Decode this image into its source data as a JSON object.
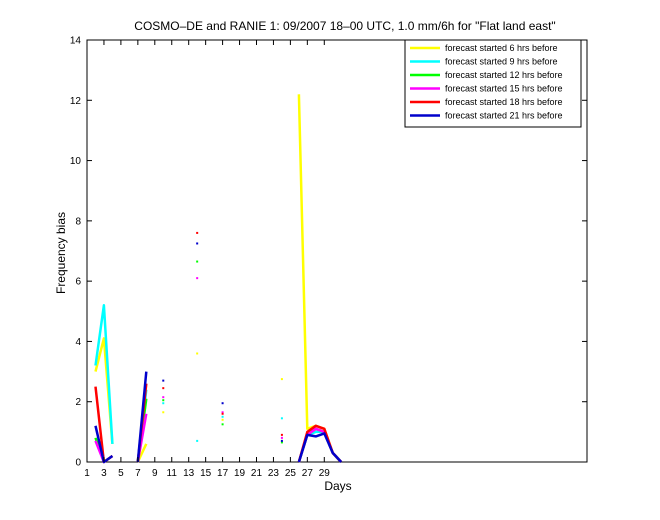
{
  "chart_data": {
    "type": "line",
    "title": "COSMO–DE and RANIE 1: 09/2007 18–00 UTC, 1.0 mm/6h for \"Flat land east\"",
    "xlabel": "Days",
    "ylabel": "Frequency bias",
    "xlim": [
      1,
      60
    ],
    "ylim": [
      0,
      14
    ],
    "xticks": [
      1,
      3,
      5,
      7,
      9,
      11,
      13,
      15,
      17,
      19,
      21,
      23,
      25,
      27,
      29
    ],
    "yticks": [
      0,
      2,
      4,
      6,
      8,
      10,
      12,
      14
    ],
    "legend_position": "top-right",
    "series": [
      {
        "name": "forecast started 6 hrs before",
        "color": "#ffff00",
        "values": [
          null,
          3.0,
          4.1,
          0.6,
          null,
          null,
          0.0,
          0.6,
          null,
          1.65,
          null,
          null,
          null,
          3.6,
          null,
          null,
          1.4,
          null,
          null,
          null,
          null,
          null,
          null,
          2.75,
          null,
          12.2,
          1.1,
          1.2,
          1.1,
          0.3,
          0.0
        ]
      },
      {
        "name": "forecast started 9 hrs before",
        "color": "#00ffff",
        "values": [
          null,
          3.2,
          5.2,
          0.6,
          null,
          null,
          0.0,
          2.4,
          null,
          1.95,
          null,
          null,
          null,
          0.7,
          null,
          null,
          1.5,
          null,
          null,
          null,
          null,
          null,
          null,
          1.45,
          null,
          0.0,
          0.9,
          1.0,
          1.0,
          0.3,
          0.0
        ]
      },
      {
        "name": "forecast started 12 hrs before",
        "color": "#00ff00",
        "values": [
          null,
          0.8,
          0.0,
          0.2,
          null,
          null,
          0.0,
          2.1,
          null,
          2.05,
          null,
          null,
          null,
          6.65,
          null,
          null,
          1.25,
          null,
          null,
          null,
          null,
          null,
          null,
          0.65,
          null,
          0.0,
          0.9,
          1.1,
          1.0,
          0.3,
          0.0
        ]
      },
      {
        "name": "forecast started 15 hrs before",
        "color": "#ff00ff",
        "values": [
          null,
          0.7,
          0.0,
          0.2,
          null,
          null,
          0.0,
          1.6,
          null,
          2.15,
          null,
          null,
          null,
          6.1,
          null,
          null,
          1.65,
          null,
          null,
          null,
          null,
          null,
          null,
          0.8,
          null,
          0.0,
          0.9,
          1.1,
          1.0,
          0.3,
          0.0
        ]
      },
      {
        "name": "forecast started 18 hrs before",
        "color": "#ff0000",
        "values": [
          null,
          2.5,
          0.0,
          0.2,
          null,
          null,
          0.0,
          2.6,
          null,
          2.45,
          null,
          null,
          null,
          7.6,
          null,
          null,
          1.6,
          null,
          null,
          null,
          null,
          null,
          null,
          0.9,
          null,
          0.0,
          1.0,
          1.2,
          1.1,
          0.3,
          0.0
        ]
      },
      {
        "name": "forecast started 21 hrs before",
        "color": "#0000cc",
        "values": [
          null,
          1.2,
          0.0,
          0.2,
          null,
          null,
          0.0,
          3.0,
          null,
          2.7,
          null,
          null,
          null,
          7.25,
          null,
          null,
          1.95,
          null,
          null,
          null,
          null,
          null,
          null,
          0.7,
          null,
          0.0,
          0.9,
          0.85,
          0.95,
          0.3,
          0.0
        ]
      }
    ]
  }
}
